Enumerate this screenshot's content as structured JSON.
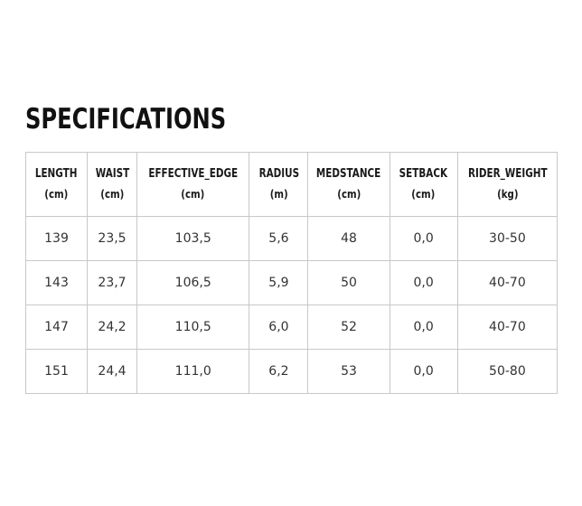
{
  "title": "SPECIFICATIONS",
  "table": {
    "headers": [
      {
        "label": "LENGTH",
        "unit": "(cm)"
      },
      {
        "label": "WAIST",
        "unit": "(cm)"
      },
      {
        "label": "EFFECTIVE_EDGE",
        "unit": "(cm)"
      },
      {
        "label": "RADIUS",
        "unit": "(m)"
      },
      {
        "label": "MEDSTANCE",
        "unit": "(cm)"
      },
      {
        "label": "SETBACK",
        "unit": "(cm)"
      },
      {
        "label": "RIDER_WEIGHT",
        "unit": "(kg)"
      }
    ],
    "rows": [
      [
        "139",
        "23,5",
        "103,5",
        "5,6",
        "48",
        "0,0",
        "30-50"
      ],
      [
        "143",
        "23,7",
        "106,5",
        "5,9",
        "50",
        "0,0",
        "40-70"
      ],
      [
        "147",
        "24,2",
        "110,5",
        "6,0",
        "52",
        "0,0",
        "40-70"
      ],
      [
        "151",
        "24,4",
        "111,0",
        "6,2",
        "53",
        "0,0",
        "50-80"
      ]
    ]
  }
}
